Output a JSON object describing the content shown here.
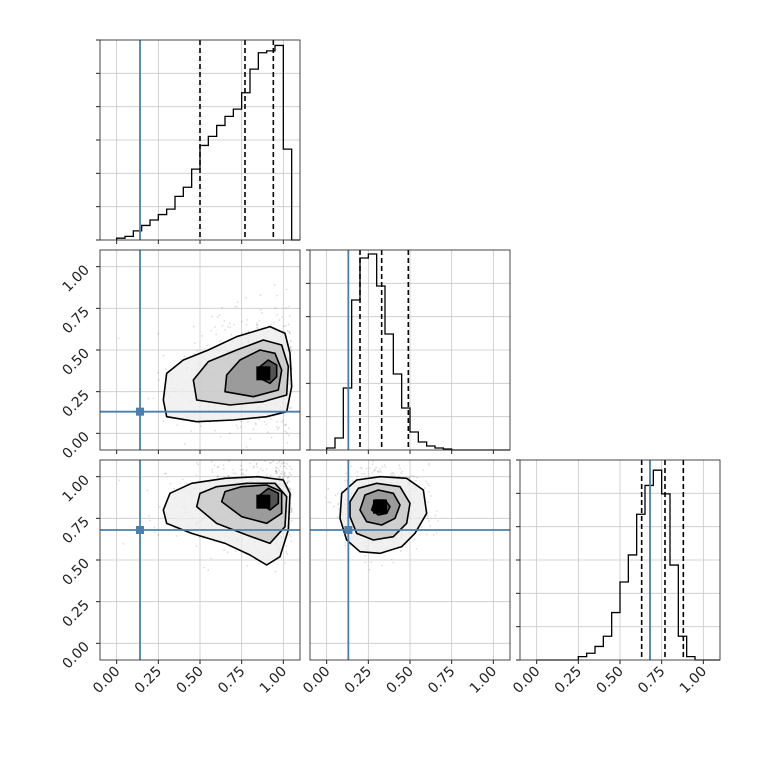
{
  "chart_data": {
    "type": "scatter",
    "kind": "corner-plot",
    "n_params": 3,
    "colors": {
      "truth": "#4a7fb0",
      "hist": "#000000",
      "quantile": "#000000",
      "density": "#000000"
    },
    "axis_range": [
      -0.1,
      1.1
    ],
    "grid": true,
    "tick_values": [
      0.0,
      0.25,
      0.5,
      0.75,
      1.0
    ],
    "tick_labels": [
      "0.00",
      "0.25",
      "0.50",
      "0.75",
      "1.00"
    ],
    "bins": [
      0.0,
      0.05,
      0.1,
      0.15,
      0.2,
      0.25,
      0.3,
      0.35,
      0.4,
      0.45,
      0.5,
      0.55,
      0.6,
      0.65,
      0.7,
      0.75,
      0.8,
      0.85,
      0.9,
      0.95,
      1.0,
      1.05
    ],
    "truths": [
      0.14,
      0.13,
      0.68
    ],
    "parameters": [
      {
        "hist_counts": [
          1,
          2,
          5,
          8,
          11,
          14,
          17,
          24,
          29,
          39,
          52,
          57,
          63,
          68,
          72,
          81,
          94,
          103,
          104,
          107,
          50,
          0
        ],
        "hist_ymax": 110,
        "quantiles": [
          0.5,
          0.77,
          0.94
        ]
      },
      {
        "hist_counts": [
          1,
          6,
          31,
          75,
          96,
          98,
          82,
          58,
          38,
          21,
          9,
          4,
          2,
          1,
          0.5,
          0,
          0,
          0,
          0,
          0,
          0,
          0
        ],
        "hist_ymax": 100,
        "quantiles": [
          0.2,
          0.33,
          0.49
        ]
      },
      {
        "hist_counts": [
          0,
          0,
          0,
          0,
          0,
          2,
          4,
          8,
          14,
          28,
          46,
          62,
          86,
          103,
          112,
          98,
          56,
          14,
          2,
          0,
          0,
          0
        ],
        "hist_ymax": 118,
        "quantiles": [
          0.63,
          0.77,
          0.88
        ]
      }
    ],
    "pairs": [
      {
        "x_param": 0,
        "y_param": 1,
        "contours": [
          [
            [
              0.3,
              0.1
            ],
            [
              0.48,
              0.07
            ],
            [
              0.7,
              0.08
            ],
            [
              0.9,
              0.1
            ],
            [
              1.02,
              0.13
            ],
            [
              1.05,
              0.28
            ],
            [
              1.04,
              0.48
            ],
            [
              1.01,
              0.6
            ],
            [
              0.92,
              0.64
            ],
            [
              0.72,
              0.58
            ],
            [
              0.55,
              0.5
            ],
            [
              0.4,
              0.44
            ],
            [
              0.3,
              0.36
            ],
            [
              0.28,
              0.2
            ]
          ],
          [
            [
              0.48,
              0.2
            ],
            [
              0.68,
              0.17
            ],
            [
              0.88,
              0.19
            ],
            [
              1.02,
              0.23
            ],
            [
              1.03,
              0.4
            ],
            [
              0.99,
              0.53
            ],
            [
              0.88,
              0.56
            ],
            [
              0.72,
              0.5
            ],
            [
              0.55,
              0.43
            ],
            [
              0.46,
              0.32
            ]
          ],
          [
            [
              0.65,
              0.25
            ],
            [
              0.82,
              0.22
            ],
            [
              0.97,
              0.26
            ],
            [
              0.99,
              0.38
            ],
            [
              0.95,
              0.48
            ],
            [
              0.86,
              0.5
            ],
            [
              0.74,
              0.44
            ],
            [
              0.66,
              0.35
            ]
          ],
          [
            [
              0.86,
              0.33
            ],
            [
              0.92,
              0.3
            ],
            [
              0.96,
              0.34
            ],
            [
              0.96,
              0.41
            ],
            [
              0.91,
              0.44
            ],
            [
              0.86,
              0.4
            ]
          ]
        ],
        "density_center": [
          0.88,
          0.36
        ],
        "density_spread": [
          0.2,
          0.12
        ]
      },
      {
        "x_param": 0,
        "y_param": 2,
        "contours": [
          [
            [
              0.3,
              0.72
            ],
            [
              0.45,
              0.66
            ],
            [
              0.65,
              0.6
            ],
            [
              0.8,
              0.53
            ],
            [
              0.9,
              0.47
            ],
            [
              0.98,
              0.52
            ],
            [
              1.03,
              0.68
            ],
            [
              1.04,
              0.9
            ],
            [
              1.0,
              0.98
            ],
            [
              0.85,
              1.0
            ],
            [
              0.65,
              0.99
            ],
            [
              0.45,
              0.96
            ],
            [
              0.32,
              0.9
            ],
            [
              0.28,
              0.8
            ]
          ],
          [
            [
              0.48,
              0.82
            ],
            [
              0.6,
              0.72
            ],
            [
              0.78,
              0.65
            ],
            [
              0.92,
              0.6
            ],
            [
              1.01,
              0.7
            ],
            [
              1.02,
              0.88
            ],
            [
              0.95,
              0.96
            ],
            [
              0.78,
              0.96
            ],
            [
              0.6,
              0.94
            ],
            [
              0.5,
              0.9
            ]
          ],
          [
            [
              0.63,
              0.85
            ],
            [
              0.75,
              0.76
            ],
            [
              0.9,
              0.72
            ],
            [
              0.99,
              0.78
            ],
            [
              0.99,
              0.91
            ],
            [
              0.9,
              0.95
            ],
            [
              0.75,
              0.94
            ],
            [
              0.65,
              0.91
            ]
          ],
          [
            [
              0.86,
              0.84
            ],
            [
              0.92,
              0.8
            ],
            [
              0.97,
              0.84
            ],
            [
              0.97,
              0.9
            ],
            [
              0.91,
              0.93
            ],
            [
              0.86,
              0.89
            ]
          ]
        ],
        "density_center": [
          0.88,
          0.85
        ],
        "density_spread": [
          0.2,
          0.1
        ]
      },
      {
        "x_param": 1,
        "y_param": 2,
        "contours": [
          [
            [
              0.08,
              0.75
            ],
            [
              0.12,
              0.62
            ],
            [
              0.2,
              0.55
            ],
            [
              0.32,
              0.54
            ],
            [
              0.45,
              0.58
            ],
            [
              0.53,
              0.66
            ],
            [
              0.6,
              0.78
            ],
            [
              0.58,
              0.92
            ],
            [
              0.48,
              0.99
            ],
            [
              0.32,
              1.0
            ],
            [
              0.18,
              0.98
            ],
            [
              0.09,
              0.9
            ]
          ],
          [
            [
              0.14,
              0.76
            ],
            [
              0.18,
              0.66
            ],
            [
              0.28,
              0.62
            ],
            [
              0.4,
              0.64
            ],
            [
              0.48,
              0.72
            ],
            [
              0.5,
              0.84
            ],
            [
              0.44,
              0.94
            ],
            [
              0.3,
              0.96
            ],
            [
              0.19,
              0.93
            ],
            [
              0.14,
              0.85
            ]
          ],
          [
            [
              0.2,
              0.8
            ],
            [
              0.24,
              0.73
            ],
            [
              0.33,
              0.71
            ],
            [
              0.41,
              0.75
            ],
            [
              0.44,
              0.83
            ],
            [
              0.4,
              0.9
            ],
            [
              0.31,
              0.92
            ],
            [
              0.23,
              0.89
            ]
          ],
          [
            [
              0.27,
              0.8
            ],
            [
              0.31,
              0.77
            ],
            [
              0.36,
              0.78
            ],
            [
              0.38,
              0.82
            ],
            [
              0.35,
              0.86
            ],
            [
              0.29,
              0.86
            ]
          ]
        ],
        "density_center": [
          0.32,
          0.82
        ],
        "density_spread": [
          0.09,
          0.09
        ]
      }
    ]
  }
}
